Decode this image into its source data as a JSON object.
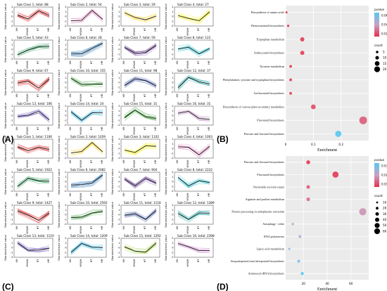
{
  "panels": [
    {
      "label": "(A)",
      "subclasses": [
        {
          "title": "Sub Class 1, total: 88",
          "color": "#e31a1c",
          "values": [
            0.3,
            -0.5,
            1.2,
            0.2
          ]
        },
        {
          "title": "Sub Class 2, total: 54",
          "color": "#e78ac3",
          "values": [
            -0.9,
            -0.8,
            1.3,
            -0.6
          ]
        },
        {
          "title": "Sub Class 3, total: 29",
          "color": "#ffd92f",
          "values": [
            0.8,
            -0.2,
            -0.7,
            0.1
          ]
        },
        {
          "title": "Sub Class 4, total: 27",
          "color": "#f2f200",
          "values": [
            0.2,
            -0.4,
            -0.9,
            1.0
          ]
        },
        {
          "title": "Sub Class 5, total: 43",
          "color": "#1a9850",
          "values": [
            -1.1,
            -0.1,
            0.6,
            0.7
          ]
        },
        {
          "title": "Sub Class 6, total: 28",
          "color": "#2171b5",
          "values": [
            -0.8,
            -0.9,
            0.2,
            1.3
          ]
        },
        {
          "title": "Sub Class 7, total: 59",
          "color": "#6a3d9a",
          "values": [
            0.5,
            -0.8,
            -0.6,
            0.9
          ]
        },
        {
          "title": "Sub Class 8, total: 122",
          "color": "#17becf",
          "values": [
            0.1,
            0.5,
            -0.9,
            0.2
          ]
        },
        {
          "title": "Sub Class 9, total: 67",
          "color": "#e31a1c",
          "values": [
            -0.1,
            0.3,
            -1.2,
            0.8
          ]
        },
        {
          "title": "Sub Class 10, total: 155",
          "color": "#4daf4a",
          "values": [
            0.9,
            -0.4,
            -0.3,
            -0.3
          ]
        },
        {
          "title": "Sub Class 11, total: 98",
          "color": "#4b66b0",
          "values": [
            -0.6,
            0.8,
            0.4,
            -0.7
          ]
        },
        {
          "title": "Sub Class 12, total: 37",
          "color": "#1aa3a3",
          "values": [
            -1.1,
            1.1,
            0.2,
            -0.3
          ]
        },
        {
          "title": "Sub Class 13, total: 106",
          "color": "#7b5fc9",
          "values": [
            -0.2,
            0.1,
            0.9,
            -0.9
          ]
        },
        {
          "title": "Sub Class 14, total: 24",
          "color": "#36b8e0",
          "values": [
            0.8,
            -1.0,
            0.6,
            0.6
          ]
        },
        {
          "title": "Sub Class 15, total: 31",
          "color": "#33a02c",
          "values": [
            -0.4,
            1.2,
            -0.2,
            -0.6
          ]
        },
        {
          "title": "Sub Class 16, total: 31",
          "color": "#c994c7",
          "values": [
            0.5,
            0.9,
            -0.6,
            -0.8
          ]
        }
      ]
    },
    {
      "label": "(C)",
      "subclasses": [
        {
          "title": "Sub Class 1, total: 1106",
          "color": "#e31a1c",
          "values": [
            0.4,
            -0.4,
            0.3,
            -0.2
          ]
        },
        {
          "title": "Sub Class 2, total: 1029",
          "color": "#ffd92f",
          "values": [
            -0.9,
            -0.6,
            1.3,
            -0.7
          ]
        },
        {
          "title": "Sub Class 3, total: 1332",
          "color": "#f2f200",
          "values": [
            -0.3,
            -0.8,
            0.6,
            0.5
          ]
        },
        {
          "title": "Sub Class 4, total: 1003",
          "color": "#e78ac3",
          "values": [
            0.4,
            0.3,
            -1.3,
            0.5
          ]
        },
        {
          "title": "Sub Class 5, total: 1922",
          "color": "#1a9850",
          "values": [
            -1.0,
            0.7,
            0.2,
            0.1
          ]
        },
        {
          "title": "Sub Class 6, total: 2082",
          "color": "#2171b5",
          "values": [
            -0.7,
            -0.6,
            -0.3,
            1.4
          ]
        },
        {
          "title": "Sub Class 7, total: 904",
          "color": "#6a3d9a",
          "values": [
            0.6,
            -0.9,
            0.7,
            -0.3
          ]
        },
        {
          "title": "Sub Class 8, total: 2222",
          "color": "#17becf",
          "values": [
            0.9,
            -0.9,
            0.2,
            -0.2
          ]
        },
        {
          "title": "Sub Class 9, total: 1427",
          "color": "#e31a1c",
          "values": [
            0.8,
            -0.1,
            -1.2,
            0.4
          ]
        },
        {
          "title": "Sub Class 10, total: 2592",
          "color": "#4daf4a",
          "values": [
            -0.6,
            -0.5,
            0.4,
            0.7
          ]
        },
        {
          "title": "Sub Class 11, total: 1118",
          "color": "#4b66b0",
          "values": [
            -0.1,
            0.2,
            -1.0,
            0.9
          ]
        },
        {
          "title": "Sub Class 12, total: 1389",
          "color": "#1aa3a3",
          "values": [
            0.3,
            -1.0,
            0.4,
            0.3
          ]
        },
        {
          "title": "Sub Class 13, total: 1110",
          "color": "#7b5fc9",
          "values": [
            1.0,
            -0.5,
            -0.5,
            -0.1
          ]
        },
        {
          "title": "Sub Class 14, total: 1209",
          "color": "#36b8e0",
          "values": [
            -1.0,
            0.9,
            0.1,
            0.0
          ]
        },
        {
          "title": "Sub Class 15, total: 1292",
          "color": "#9acd32",
          "values": [
            0.2,
            -0.7,
            -0.9,
            1.0
          ]
        },
        {
          "title": "Sub Class 16, total: 2398",
          "color": "#d48cd8",
          "values": [
            0.9,
            0.2,
            -0.6,
            -0.6
          ]
        }
      ]
    }
  ],
  "profile_common": {
    "ylabel": "Standardised value",
    "xticks": [
      "XH",
      "HYWH",
      "HT",
      "HR"
    ],
    "yticks": [
      -2,
      -1,
      0,
      1,
      2
    ],
    "ylim": [
      -2,
      2
    ]
  },
  "chart_data": [
    {
      "type": "scatter",
      "panel": "(B)",
      "xlabel": "Enrichment",
      "xlim": [
        0,
        0.3
      ],
      "xticks": [
        0.0,
        0.1,
        0.2
      ],
      "legend": {
        "color_title": "pvalue",
        "color_ticks": [
          0.06,
          0.04,
          0.02
        ],
        "size_title": "count",
        "size_ticks": [
          5,
          10,
          15,
          20
        ]
      },
      "points": [
        {
          "term": "Biosynthesis of amino acids",
          "enrichment": 0.003,
          "count": 1,
          "pvalue": 0.003
        },
        {
          "term": "Benzoxazinoid biosynthesis",
          "enrichment": 0.009,
          "count": 2,
          "pvalue": 0.004
        },
        {
          "term": "Tryptophan metabolism",
          "enrichment": 0.06,
          "count": 8,
          "pvalue": 0.005
        },
        {
          "term": "Anthocyanin biosynthesis",
          "enrichment": 0.06,
          "count": 8,
          "pvalue": 0.006
        },
        {
          "term": "Tyrosine metabolism",
          "enrichment": 0.018,
          "count": 3,
          "pvalue": 0.004
        },
        {
          "term": "Phenylalanine, tyrosine and tryptophan biosynthesis",
          "enrichment": 0.018,
          "count": 3,
          "pvalue": 0.004
        },
        {
          "term": "Isoflavonoid biosynthesis",
          "enrichment": 0.018,
          "count": 3,
          "pvalue": 0.004
        },
        {
          "term": "Biosynthesis of various plant secondary metabolites",
          "enrichment": 0.1,
          "count": 10,
          "pvalue": 0.01
        },
        {
          "term": "Flavonoid biosynthesis",
          "enrichment": 0.28,
          "count": 20,
          "pvalue": 0.015
        },
        {
          "term": "Flavone and flavonol biosynthesis",
          "enrichment": 0.19,
          "count": 15,
          "pvalue": 0.065
        }
      ]
    },
    {
      "type": "scatter",
      "panel": "(D)",
      "xlabel": "Enrichment",
      "xlim": [
        5,
        75
      ],
      "xticks": [
        20,
        40,
        60
      ],
      "legend": {
        "color_title": "pvalue",
        "color_ticks": [
          0.03,
          0.02,
          0.01
        ],
        "size_title": "count",
        "size_ticks": [
          10,
          20,
          30,
          40,
          50,
          60
        ]
      },
      "points": [
        {
          "term": "Flavone and flavonol biosynthesis",
          "enrichment": 24,
          "count": 22,
          "pvalue": 0.004
        },
        {
          "term": "Flavonoid biosynthesis",
          "enrichment": 47,
          "count": 45,
          "pvalue": 0.005
        },
        {
          "term": "Nucleotide excision repair",
          "enrichment": 24,
          "count": 20,
          "pvalue": 0.01
        },
        {
          "term": "Arginine and proline metabolism",
          "enrichment": 24,
          "count": 20,
          "pvalue": 0.012
        },
        {
          "term": "Protein processing in endoplasmic reticulum",
          "enrichment": 70,
          "count": 55,
          "pvalue": 0.018
        },
        {
          "term": "Autophagy - other",
          "enrichment": 11,
          "count": 8,
          "pvalue": 0.02
        },
        {
          "term": "RNA polymerase",
          "enrichment": 17,
          "count": 12,
          "pvalue": 0.024
        },
        {
          "term": "Lipoic acid metabolism",
          "enrichment": 8,
          "count": 6,
          "pvalue": 0.028
        },
        {
          "term": "Sesquiterpenoid and triterpenoid biosynthesis",
          "enrichment": 16,
          "count": 12,
          "pvalue": 0.032
        },
        {
          "term": "Aminoacyl-tRNA biosynthesis",
          "enrichment": 19,
          "count": 15,
          "pvalue": 0.036
        }
      ]
    }
  ],
  "dot_panels": [
    {
      "label": "(B)"
    },
    {
      "label": "(D)"
    }
  ]
}
